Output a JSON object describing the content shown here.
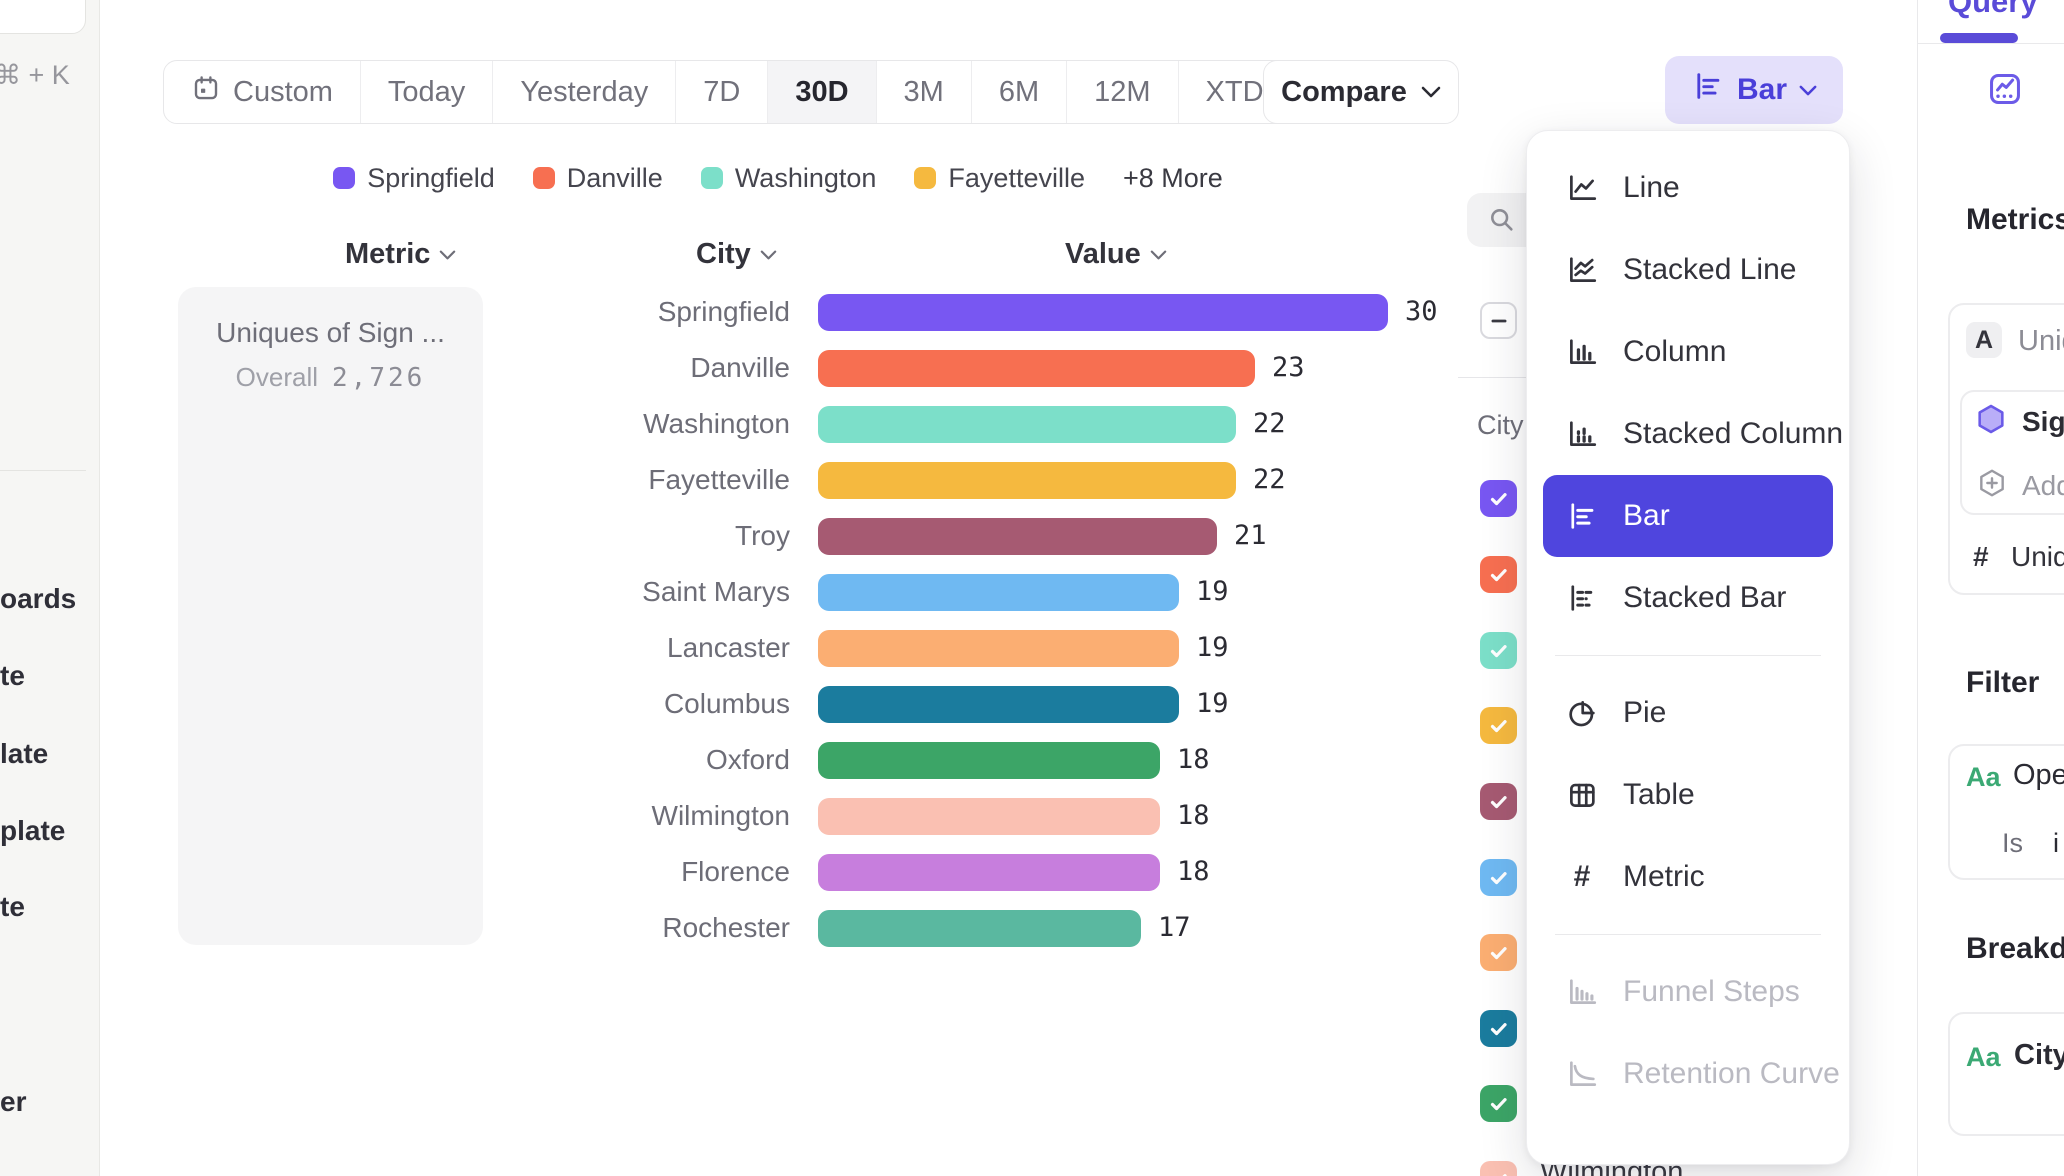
{
  "left_sidebar": {
    "shortcut": "⌘ + K",
    "items": [
      "oards",
      "te",
      "late",
      "plate",
      "te",
      "er"
    ]
  },
  "toolbar": {
    "date_ranges": [
      "Custom",
      "Today",
      "Yesterday",
      "7D",
      "30D",
      "3M",
      "6M",
      "12M",
      "XTD"
    ],
    "selected_range": "30D",
    "compare_label": "Compare",
    "chart_type_label": "Bar"
  },
  "legend": {
    "items": [
      {
        "label": "Springfield",
        "color": "#7857F2"
      },
      {
        "label": "Danville",
        "color": "#F76F51"
      },
      {
        "label": "Washington",
        "color": "#7CDFC9"
      },
      {
        "label": "Fayetteville",
        "color": "#F5B93F"
      }
    ],
    "more_label": "+8 More"
  },
  "table_headers": {
    "metric": "Metric",
    "city": "City",
    "value": "Value"
  },
  "metric_card": {
    "title": "Uniques of Sign ...",
    "overall_label": "Overall",
    "overall_value": "2,726"
  },
  "chart_data": {
    "type": "bar",
    "orientation": "horizontal",
    "title": "",
    "categories": [
      "Springfield",
      "Danville",
      "Washington",
      "Fayetteville",
      "Troy",
      "Saint Marys",
      "Lancaster",
      "Columbus",
      "Oxford",
      "Wilmington",
      "Florence",
      "Rochester"
    ],
    "values": [
      30,
      23,
      22,
      22,
      21,
      19,
      19,
      19,
      18,
      18,
      18,
      17
    ],
    "colors": [
      "#7857F2",
      "#F76F51",
      "#7CDFC9",
      "#F5B93F",
      "#A65A72",
      "#6FB9F2",
      "#FBAE72",
      "#1B7C9E",
      "#3CA567",
      "#FAC0B2",
      "#C77EDD",
      "#5AB8A0"
    ],
    "xlim": [
      0,
      30
    ],
    "value_labels": true,
    "grid": false,
    "legend_position": "top"
  },
  "series_panel": {
    "group_label": "City",
    "select_all_state": "indeterminate",
    "checkboxes": [
      {
        "color": "#7857F2",
        "checked": true
      },
      {
        "color": "#F76F51",
        "checked": true
      },
      {
        "color": "#7CDFC9",
        "checked": true
      },
      {
        "color": "#F5B93F",
        "checked": true
      },
      {
        "color": "#A65A72",
        "checked": true
      },
      {
        "color": "#6FB9F2",
        "checked": true
      },
      {
        "color": "#FBAE72",
        "checked": true
      },
      {
        "color": "#1B7C9E",
        "checked": true
      },
      {
        "color": "#3CA567",
        "checked": true
      },
      {
        "color": "#FAC0B2",
        "checked": true
      }
    ],
    "visible_label": "Wilmington"
  },
  "chart_menu": {
    "items": [
      {
        "label": "Line",
        "icon": "line"
      },
      {
        "label": "Stacked Line",
        "icon": "stacked-line"
      },
      {
        "label": "Column",
        "icon": "column"
      },
      {
        "label": "Stacked Column",
        "icon": "stacked-column"
      },
      {
        "label": "Bar",
        "icon": "bar",
        "selected": true,
        "gap_before": true
      },
      {
        "label": "Stacked Bar",
        "icon": "stacked-bar"
      },
      {
        "label": "Pie",
        "icon": "pie",
        "divider_before": true
      },
      {
        "label": "Table",
        "icon": "table"
      },
      {
        "label": "Metric",
        "icon": "metric"
      },
      {
        "label": "Funnel Steps",
        "icon": "funnel",
        "disabled": true,
        "divider_before": true
      },
      {
        "label": "Retention Curve",
        "icon": "retention",
        "disabled": true
      }
    ]
  },
  "right_panel": {
    "tab": "Query",
    "metrics_heading": "Metrics",
    "metric_badge": "A",
    "metric_label": "Uniques",
    "event_row_1": "Sign",
    "event_row_2": "Add",
    "unique_prefix": "#",
    "unique_label": "Unique",
    "filter_heading": "Filter",
    "filter_badge": "Aa",
    "filter_label": "Open",
    "filter_operator": "Is",
    "filter_value": "i",
    "breakdown_heading": "Breakdown",
    "breakdown_badge": "Aa",
    "breakdown_label": "City"
  },
  "colors": {
    "accent": "#4F45DE",
    "accent_light_bg": "#E4E0FB",
    "text_dark": "#2B2B33",
    "text_gray": "#6E6E78"
  }
}
